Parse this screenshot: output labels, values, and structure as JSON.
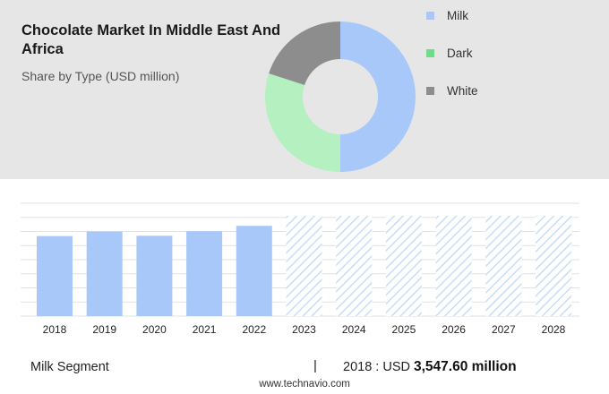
{
  "header": {
    "title": "Chocolate Market In Middle East And Africa",
    "subtitle": "Share by Type (USD million)"
  },
  "legend": [
    {
      "label": "Milk",
      "color": "#a8c8fa"
    },
    {
      "label": "Dark",
      "color": "#6fdc8c"
    },
    {
      "label": "White",
      "color": "#8d8d8d"
    }
  ],
  "chart_data": [
    {
      "type": "pie",
      "title": "Share by Type (USD million)",
      "donut": true,
      "categories": [
        "Milk",
        "Dark",
        "White"
      ],
      "values": [
        50,
        30,
        20
      ],
      "colors": [
        "#a8c8fa",
        "#b4f0c0",
        "#8d8d8d"
      ]
    },
    {
      "type": "bar",
      "categories": [
        "2018",
        "2019",
        "2020",
        "2021",
        "2022",
        "2023",
        "2024",
        "2025",
        "2026",
        "2027",
        "2028"
      ],
      "values": [
        3547.6,
        3750,
        3560,
        3760,
        4000,
        4450,
        4450,
        4450,
        4450,
        4450,
        4450
      ],
      "forecast_from": "2023",
      "series": [
        {
          "name": "Milk Segment"
        }
      ],
      "colors": {
        "actual": "#a8c8fa",
        "forecast_hatch": "#c9dcf7"
      },
      "grid": true,
      "ylim": [
        0,
        5000
      ]
    }
  ],
  "footer": {
    "segment_label": "Milk Segment",
    "separator": "|",
    "year_label": "2018 : USD",
    "value": "3,547.60 million",
    "website": "www.technavio.com"
  }
}
